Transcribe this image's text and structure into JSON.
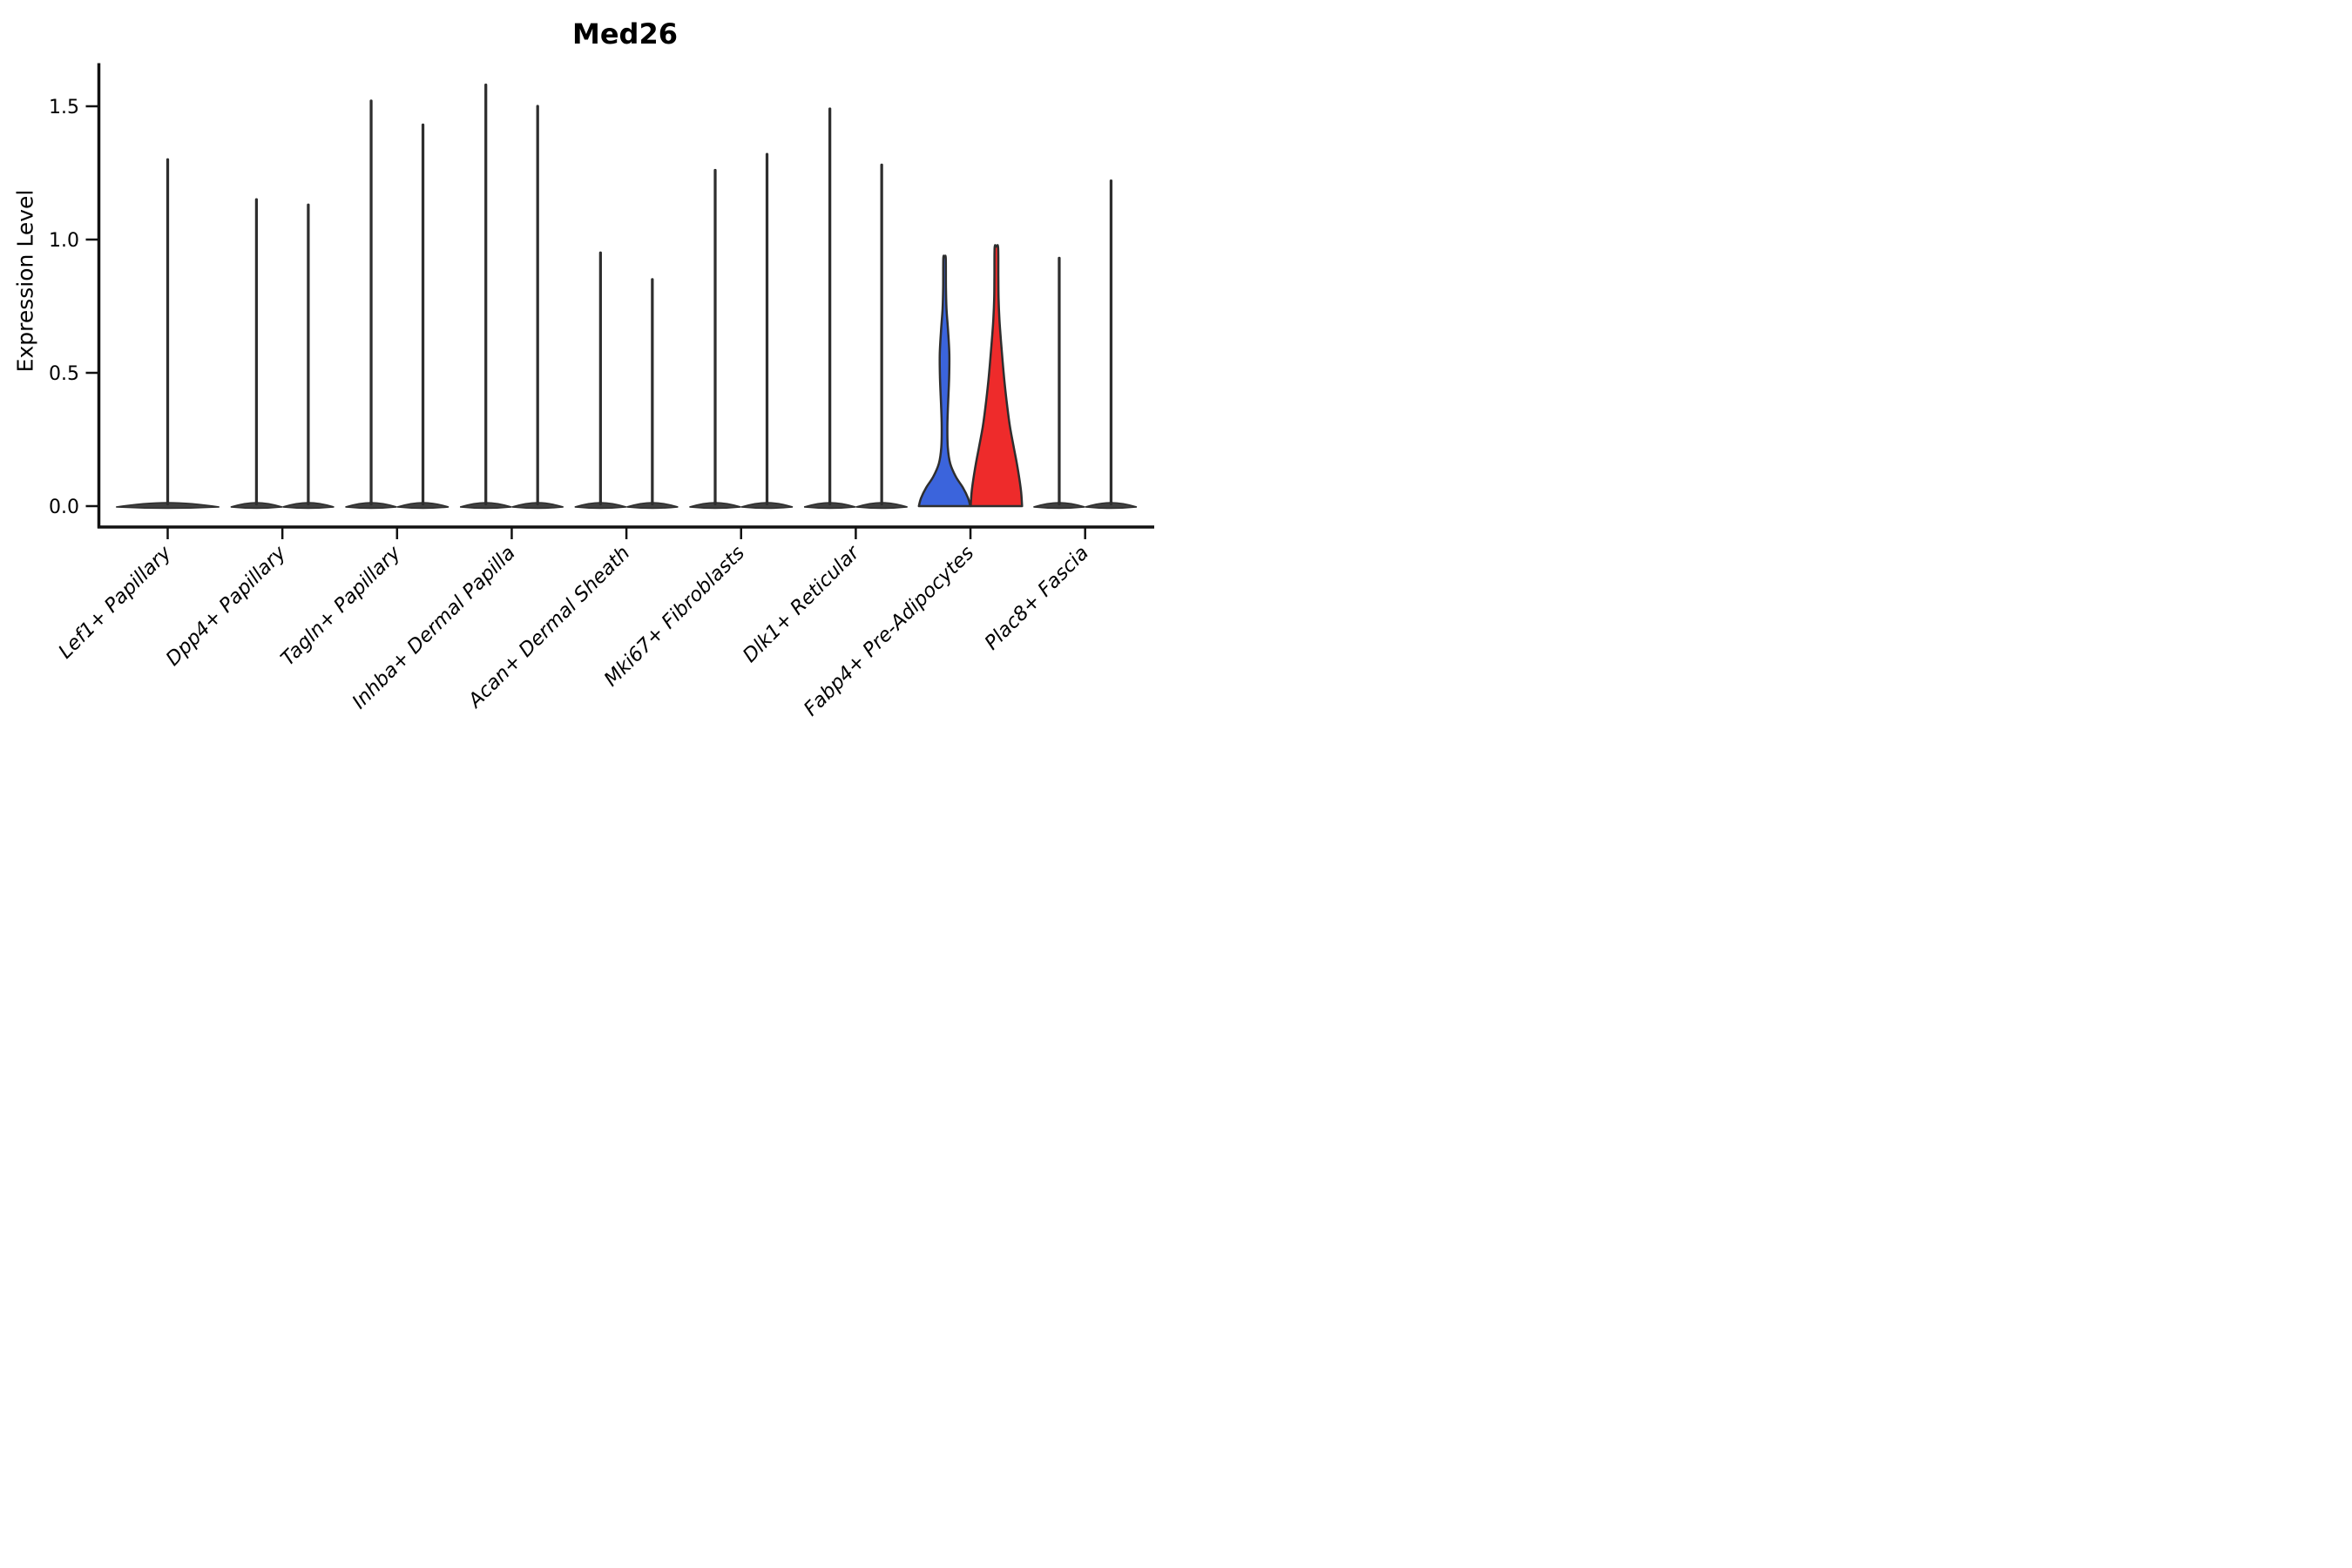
{
  "chart_data": {
    "type": "violin",
    "title": "Med26",
    "ylabel": "Expression Level",
    "xlabel": "",
    "ylim": [
      -0.08,
      1.66
    ],
    "ytick_labels": [
      "0.0",
      "0.5",
      "1.0",
      "1.5"
    ],
    "ytick_values": [
      0.0,
      0.5,
      1.0,
      1.5
    ],
    "legend": "none",
    "grid": false,
    "colors": {
      "outline": "#2e2e2e",
      "axis": "#111111",
      "pancake_fill": "#404040",
      "highlight_blue": "#3b64dc",
      "highlight_red": "#ee2b2b"
    },
    "categories": [
      {
        "label": "Lef1+ Papillary",
        "violins": [
          {
            "pos": "center",
            "wide": true,
            "type": "spike",
            "max": 1.3,
            "fill": "none"
          }
        ]
      },
      {
        "label": "Dpp4+ Papillary",
        "violins": [
          {
            "pos": "left",
            "type": "spike",
            "max": 1.15,
            "fill": "none"
          },
          {
            "pos": "right",
            "type": "spike",
            "max": 1.13,
            "fill": "none"
          }
        ]
      },
      {
        "label": "Tagln+ Papillary",
        "violins": [
          {
            "pos": "left",
            "type": "spike",
            "max": 1.52,
            "fill": "none"
          },
          {
            "pos": "right",
            "type": "spike",
            "max": 1.43,
            "fill": "none"
          }
        ]
      },
      {
        "label": "Inhba+ Dermal Papilla",
        "violins": [
          {
            "pos": "left",
            "type": "spike",
            "max": 1.58,
            "fill": "none"
          },
          {
            "pos": "right",
            "type": "spike",
            "max": 1.5,
            "fill": "none"
          }
        ]
      },
      {
        "label": "Acan+ Dermal Sheath",
        "violins": [
          {
            "pos": "left",
            "type": "spike",
            "max": 0.95,
            "fill": "none"
          },
          {
            "pos": "right",
            "type": "spike",
            "max": 0.85,
            "fill": "none"
          }
        ]
      },
      {
        "label": "Mki67+ Fibroblasts",
        "violins": [
          {
            "pos": "left",
            "type": "spike",
            "max": 1.26,
            "fill": "none"
          },
          {
            "pos": "right",
            "type": "spike",
            "max": 1.32,
            "fill": "none"
          }
        ]
      },
      {
        "label": "Dlk1+ Reticular",
        "violins": [
          {
            "pos": "left",
            "type": "spike",
            "max": 1.49,
            "fill": "none"
          },
          {
            "pos": "right",
            "type": "spike",
            "max": 1.28,
            "fill": "none"
          }
        ]
      },
      {
        "label": "Fabp4+ Pre-Adipocytes",
        "violins": [
          {
            "pos": "left",
            "type": "shaped",
            "max": 0.93,
            "fill": "#3b64dc",
            "profile": [
              [
                0,
                59
              ],
              [
                0.03,
                54
              ],
              [
                0.07,
                42
              ],
              [
                0.11,
                26
              ],
              [
                0.16,
                13
              ],
              [
                0.22,
                7.5
              ],
              [
                0.3,
                6.5
              ],
              [
                0.38,
                8
              ],
              [
                0.48,
                10.5
              ],
              [
                0.57,
                11
              ],
              [
                0.66,
                8
              ],
              [
                0.74,
                4.5
              ],
              [
                0.82,
                3.2
              ],
              [
                0.93,
                2.8
              ]
            ]
          },
          {
            "pos": "right",
            "type": "shaped",
            "max": 0.97,
            "fill": "#ee2b2b",
            "profile": [
              [
                0,
                59
              ],
              [
                0.05,
                57
              ],
              [
                0.1,
                53
              ],
              [
                0.16,
                47
              ],
              [
                0.22,
                40
              ],
              [
                0.3,
                31
              ],
              [
                0.38,
                24.5
              ],
              [
                0.46,
                19
              ],
              [
                0.54,
                14.5
              ],
              [
                0.62,
                10.5
              ],
              [
                0.7,
                7
              ],
              [
                0.78,
                5
              ],
              [
                0.86,
                4.5
              ],
              [
                0.97,
                4
              ]
            ]
          }
        ]
      },
      {
        "label": "Plac8+ Fascia",
        "violins": [
          {
            "pos": "left",
            "type": "spike",
            "max": 0.93,
            "fill": "none"
          },
          {
            "pos": "right",
            "type": "spike",
            "max": 1.22,
            "fill": "none"
          }
        ]
      }
    ]
  }
}
